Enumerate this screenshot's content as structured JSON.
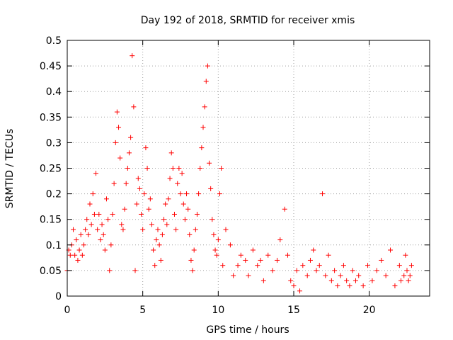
{
  "chart_data": {
    "type": "scatter",
    "title": "Day 192 of 2018, SRMTID for receiver xmis",
    "xlabel": "GPS time / hours",
    "ylabel": "SRMTID / TECUs",
    "xlim": [
      0,
      24
    ],
    "ylim": [
      0,
      0.5
    ],
    "xticks": [
      0,
      5,
      10,
      15,
      20
    ],
    "xtick_labels": [
      "0",
      "5",
      "10",
      "15",
      "20"
    ],
    "yticks": [
      0,
      0.05,
      0.1,
      0.15,
      0.2,
      0.25,
      0.3,
      0.35,
      0.4,
      0.45,
      0.5
    ],
    "ytick_labels": [
      "0",
      "0.05",
      "0.1",
      "0.15",
      "0.2",
      "0.25",
      "0.3",
      "0.35",
      "0.4",
      "0.45",
      "0.5"
    ],
    "grid": true,
    "marker": "+",
    "color": "#ff0000",
    "series": [
      {
        "name": "SRMTID",
        "points": [
          [
            0.0,
            0.05
          ],
          [
            0.1,
            0.09
          ],
          [
            0.2,
            0.08
          ],
          [
            0.3,
            0.1
          ],
          [
            0.4,
            0.13
          ],
          [
            0.5,
            0.08
          ],
          [
            0.6,
            0.11
          ],
          [
            0.7,
            0.07
          ],
          [
            0.8,
            0.09
          ],
          [
            0.9,
            0.12
          ],
          [
            1.0,
            0.08
          ],
          [
            1.1,
            0.1
          ],
          [
            1.2,
            0.13
          ],
          [
            1.3,
            0.15
          ],
          [
            1.4,
            0.12
          ],
          [
            1.5,
            0.18
          ],
          [
            1.6,
            0.14
          ],
          [
            1.7,
            0.2
          ],
          [
            1.8,
            0.16
          ],
          [
            1.9,
            0.24
          ],
          [
            2.0,
            0.13
          ],
          [
            2.1,
            0.16
          ],
          [
            2.2,
            0.11
          ],
          [
            2.3,
            0.14
          ],
          [
            2.4,
            0.12
          ],
          [
            2.5,
            0.09
          ],
          [
            2.6,
            0.19
          ],
          [
            2.7,
            0.15
          ],
          [
            2.8,
            0.05
          ],
          [
            2.9,
            0.1
          ],
          [
            3.0,
            0.16
          ],
          [
            3.1,
            0.22
          ],
          [
            3.2,
            0.3
          ],
          [
            3.3,
            0.36
          ],
          [
            3.4,
            0.33
          ],
          [
            3.5,
            0.27
          ],
          [
            3.6,
            0.14
          ],
          [
            3.7,
            0.13
          ],
          [
            3.8,
            0.17
          ],
          [
            3.9,
            0.22
          ],
          [
            4.0,
            0.25
          ],
          [
            4.1,
            0.28
          ],
          [
            4.2,
            0.31
          ],
          [
            4.3,
            0.47
          ],
          [
            4.4,
            0.37
          ],
          [
            4.5,
            0.05
          ],
          [
            4.6,
            0.18
          ],
          [
            4.7,
            0.23
          ],
          [
            4.8,
            0.21
          ],
          [
            4.9,
            0.16
          ],
          [
            5.0,
            0.13
          ],
          [
            5.1,
            0.2
          ],
          [
            5.2,
            0.29
          ],
          [
            5.3,
            0.25
          ],
          [
            5.4,
            0.17
          ],
          [
            5.5,
            0.19
          ],
          [
            5.6,
            0.14
          ],
          [
            5.7,
            0.09
          ],
          [
            5.8,
            0.06
          ],
          [
            5.9,
            0.11
          ],
          [
            6.0,
            0.13
          ],
          [
            6.1,
            0.1
          ],
          [
            6.2,
            0.07
          ],
          [
            6.3,
            0.12
          ],
          [
            6.4,
            0.15
          ],
          [
            6.5,
            0.18
          ],
          [
            6.6,
            0.14
          ],
          [
            6.7,
            0.19
          ],
          [
            6.8,
            0.23
          ],
          [
            6.9,
            0.28
          ],
          [
            7.0,
            0.25
          ],
          [
            7.1,
            0.16
          ],
          [
            7.2,
            0.13
          ],
          [
            7.3,
            0.22
          ],
          [
            7.4,
            0.25
          ],
          [
            7.5,
            0.2
          ],
          [
            7.6,
            0.24
          ],
          [
            7.7,
            0.18
          ],
          [
            7.8,
            0.15
          ],
          [
            7.9,
            0.2
          ],
          [
            8.0,
            0.17
          ],
          [
            8.1,
            0.12
          ],
          [
            8.2,
            0.07
          ],
          [
            8.3,
            0.05
          ],
          [
            8.4,
            0.09
          ],
          [
            8.5,
            0.13
          ],
          [
            8.6,
            0.16
          ],
          [
            8.7,
            0.2
          ],
          [
            8.8,
            0.25
          ],
          [
            8.9,
            0.29
          ],
          [
            9.0,
            0.33
          ],
          [
            9.1,
            0.37
          ],
          [
            9.2,
            0.42
          ],
          [
            9.3,
            0.45
          ],
          [
            9.4,
            0.26
          ],
          [
            9.5,
            0.21
          ],
          [
            9.6,
            0.15
          ],
          [
            9.7,
            0.12
          ],
          [
            9.8,
            0.09
          ],
          [
            9.9,
            0.08
          ],
          [
            10.0,
            0.11
          ],
          [
            10.1,
            0.2
          ],
          [
            10.2,
            0.25
          ],
          [
            10.3,
            0.06
          ],
          [
            10.5,
            0.13
          ],
          [
            10.8,
            0.1
          ],
          [
            11.0,
            0.04
          ],
          [
            11.3,
            0.06
          ],
          [
            11.5,
            0.08
          ],
          [
            11.8,
            0.07
          ],
          [
            12.0,
            0.04
          ],
          [
            12.3,
            0.09
          ],
          [
            12.6,
            0.06
          ],
          [
            12.8,
            0.07
          ],
          [
            13.0,
            0.03
          ],
          [
            13.3,
            0.08
          ],
          [
            13.6,
            0.05
          ],
          [
            13.9,
            0.07
          ],
          [
            14.1,
            0.11
          ],
          [
            14.4,
            0.17
          ],
          [
            14.6,
            0.08
          ],
          [
            14.8,
            0.03
          ],
          [
            15.0,
            0.02
          ],
          [
            15.2,
            0.05
          ],
          [
            15.4,
            0.01
          ],
          [
            15.6,
            0.06
          ],
          [
            15.9,
            0.04
          ],
          [
            16.1,
            0.07
          ],
          [
            16.3,
            0.09
          ],
          [
            16.5,
            0.05
          ],
          [
            16.7,
            0.06
          ],
          [
            16.9,
            0.2
          ],
          [
            17.1,
            0.04
          ],
          [
            17.3,
            0.08
          ],
          [
            17.5,
            0.03
          ],
          [
            17.7,
            0.05
          ],
          [
            17.9,
            0.02
          ],
          [
            18.1,
            0.04
          ],
          [
            18.3,
            0.06
          ],
          [
            18.5,
            0.03
          ],
          [
            18.7,
            0.02
          ],
          [
            18.9,
            0.05
          ],
          [
            19.1,
            0.03
          ],
          [
            19.3,
            0.04
          ],
          [
            19.6,
            0.02
          ],
          [
            19.9,
            0.06
          ],
          [
            20.2,
            0.03
          ],
          [
            20.5,
            0.05
          ],
          [
            20.8,
            0.07
          ],
          [
            21.1,
            0.04
          ],
          [
            21.4,
            0.09
          ],
          [
            21.7,
            0.02
          ],
          [
            22.0,
            0.06
          ],
          [
            22.1,
            0.03
          ],
          [
            22.3,
            0.04
          ],
          [
            22.4,
            0.08
          ],
          [
            22.5,
            0.05
          ],
          [
            22.6,
            0.03
          ],
          [
            22.7,
            0.04
          ],
          [
            22.8,
            0.06
          ]
        ]
      }
    ]
  }
}
